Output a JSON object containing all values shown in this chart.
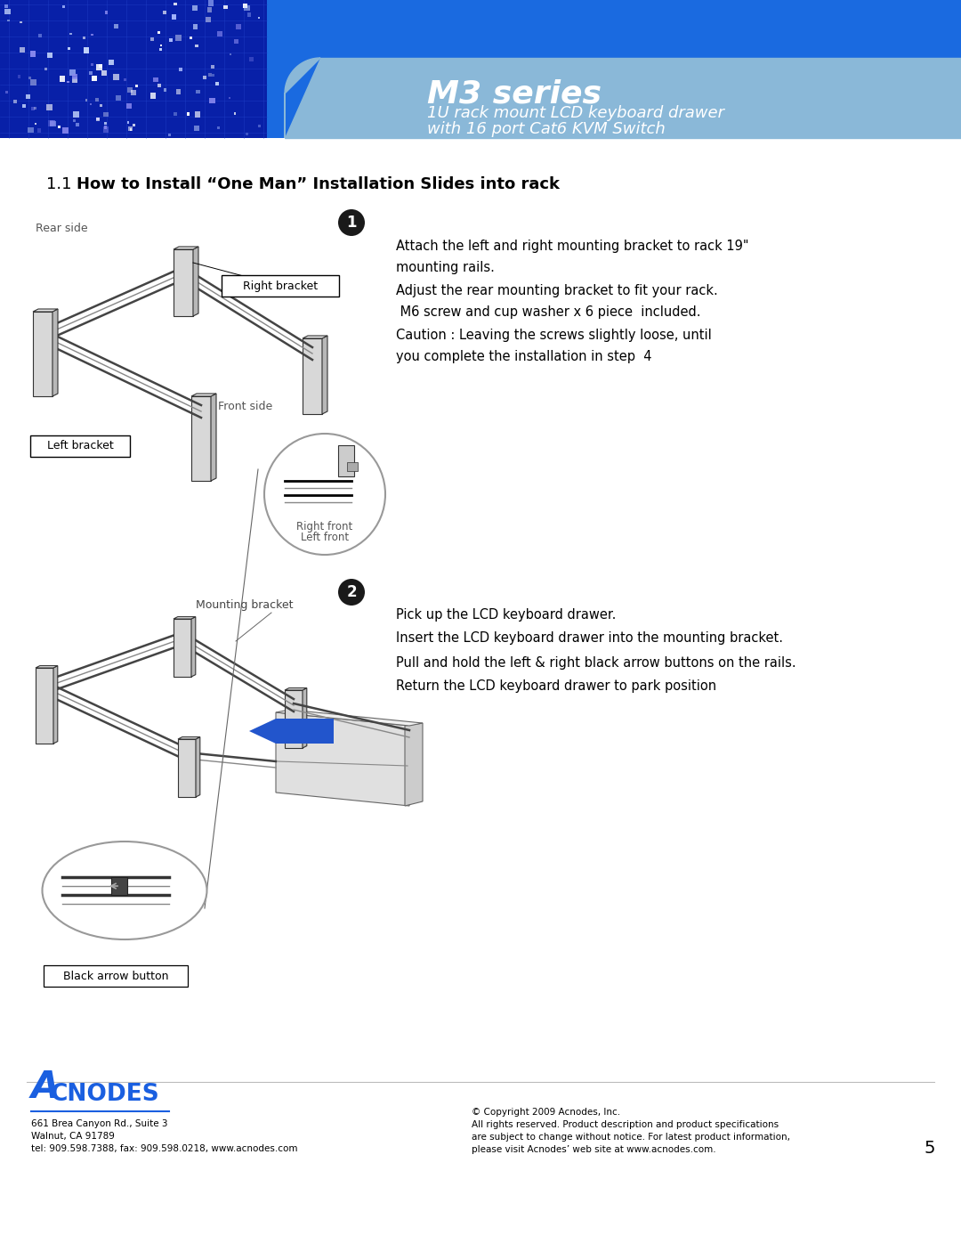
{
  "title_main": "M3 series",
  "title_sub1": "1U rack mount LCD keyboard drawer",
  "title_sub2": "with 16 port Cat6 KVM Switch",
  "section_title_num": "1.1",
  "section_title_text": "How to Install “One Man” Installation Slides into rack",
  "step1_lines": [
    "Attach the left and right mounting bracket to rack 19\"",
    "mounting rails.",
    "Adjust the rear mounting bracket to fit your rack.",
    " M6 screw and cup washer x 6 piece  included.",
    "Caution : Leaving the screws slightly loose, until",
    "you complete the installation in step  4"
  ],
  "step2_lines": [
    "Pick up the LCD keyboard drawer.",
    "Insert the LCD keyboard drawer into the mounting bracket.",
    "Pull and hold the left & right black arrow buttons on the rails.",
    "Return the LCD keyboard drawer to park position"
  ],
  "label_right_bracket": "Right bracket",
  "label_left_bracket": "Left bracket",
  "label_rear_side": "Rear side",
  "label_front_side": "Front side",
  "label_right_front": "Right front",
  "label_left_front": "Left front",
  "label_mounting_bracket": "Mounting bracket",
  "label_black_arrow": "Black arrow button",
  "footer_address_lines": [
    "661 Brea Canyon Rd., Suite 3",
    "Walnut, CA 91789",
    "tel: 909.598.7388, fax: 909.598.0218, www.acnodes.com"
  ],
  "footer_copyright_lines": [
    "© Copyright 2009 Acnodes, Inc.",
    "All rights reserved. Product description and product specifications",
    "are subject to change without notice. For latest product information,",
    "please visit Acnodes’ web site at www.acnodes.com."
  ],
  "page_number": "5",
  "header_bg_color": "#1a6ae0",
  "header_banner_color": "#8ab8d8",
  "bg_color": "#ffffff",
  "text_color": "#000000",
  "accent_blue": "#1a5fe0",
  "diagram_gray": "#cccccc",
  "diagram_dark": "#555555",
  "diagram_light": "#e8e8e8"
}
